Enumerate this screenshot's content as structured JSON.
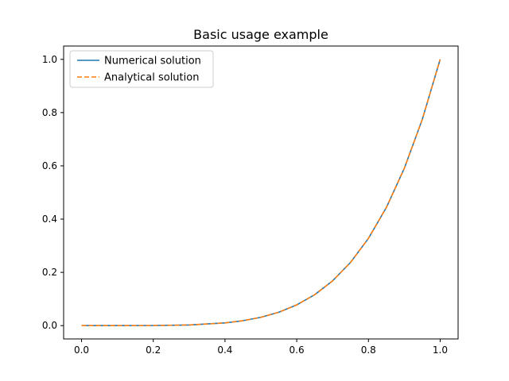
{
  "chart_data": {
    "type": "line",
    "title": "Basic usage example",
    "xlabel": "",
    "ylabel": "",
    "xlim": [
      -0.05,
      1.05
    ],
    "ylim": [
      -0.05,
      1.05
    ],
    "xticks": [
      0.0,
      0.2,
      0.4,
      0.6,
      0.8,
      1.0
    ],
    "xtick_labels": [
      "0.0",
      "0.2",
      "0.4",
      "0.6",
      "0.8",
      "1.0"
    ],
    "yticks": [
      0.0,
      0.2,
      0.4,
      0.6,
      0.8,
      1.0
    ],
    "ytick_labels": [
      "0.0",
      "0.2",
      "0.4",
      "0.6",
      "0.8",
      "1.0"
    ],
    "grid": false,
    "legend_position": "top-left",
    "x": [
      0.0,
      0.1,
      0.2,
      0.3,
      0.4,
      0.45,
      0.5,
      0.55,
      0.6,
      0.65,
      0.7,
      0.75,
      0.8,
      0.85,
      0.9,
      0.95,
      1.0
    ],
    "series": [
      {
        "name": "Numerical solution",
        "color": "#1f77b4",
        "style": "solid",
        "values": [
          0.0,
          1e-05,
          0.0003,
          0.0024,
          0.0102,
          0.0185,
          0.0313,
          0.0503,
          0.0778,
          0.116,
          0.1681,
          0.2373,
          0.3277,
          0.4437,
          0.5905,
          0.7738,
          1.0
        ]
      },
      {
        "name": "Analytical solution",
        "color": "#ff7f0e",
        "style": "dashed",
        "values": [
          0.0,
          1e-05,
          0.0003,
          0.0024,
          0.0102,
          0.0185,
          0.0313,
          0.0503,
          0.0778,
          0.116,
          0.1681,
          0.2373,
          0.3277,
          0.4437,
          0.5905,
          0.7738,
          1.0
        ]
      }
    ]
  }
}
